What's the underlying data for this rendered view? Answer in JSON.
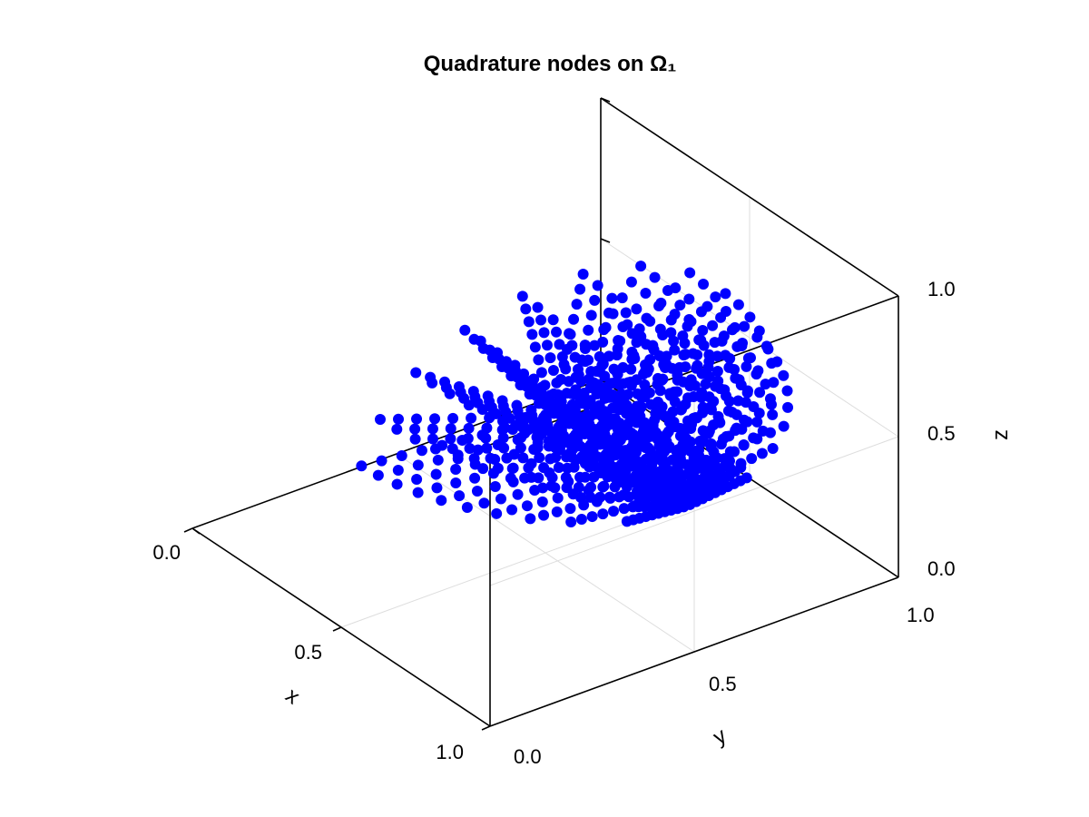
{
  "chart_data": {
    "type": "scatter3d",
    "title": "Quadrature nodes on Ω₁",
    "xlabel": "x",
    "ylabel": "y",
    "zlabel": "z",
    "xlim": [
      0,
      1
    ],
    "ylim": [
      0,
      1
    ],
    "zlim": [
      0,
      1
    ],
    "x_ticks": [
      "0.0",
      "0.5",
      "1.0"
    ],
    "y_ticks": [
      "0.0",
      "0.5",
      "1.0"
    ],
    "z_ticks": [
      "0.0",
      "0.5",
      "1.0"
    ],
    "grid": true,
    "marker_color": "#0000ff",
    "domain": "upper half-ball (z >= 0.5) of radius 0.5 centred at (0.5, 0.5, 0.5), clipped to x <= 0.5",
    "nodes_per_axis": 10
  }
}
